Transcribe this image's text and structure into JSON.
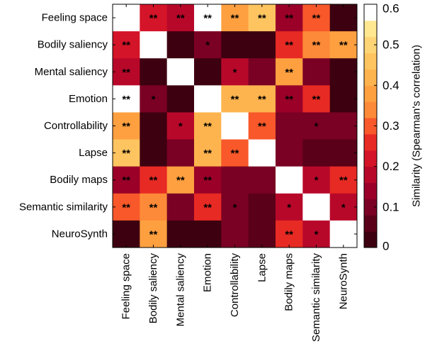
{
  "chart_data": {
    "type": "heatmap",
    "title": "",
    "row_labels": [
      "Feeling space",
      "Bodily saliency",
      "Mental saliency",
      "Emotion",
      "Controllability",
      "Lapse",
      "Bodily maps",
      "Semantic similarity",
      "NeuroSynth"
    ],
    "col_labels": [
      "Feeling space",
      "Bodily saliency",
      "Mental saliency",
      "Emotion",
      "Controllability",
      "Lapse",
      "Bodily maps",
      "Semantic similarity",
      "NeuroSynth"
    ],
    "values": [
      [
        null,
        0.22,
        0.18,
        0.6,
        0.38,
        0.45,
        0.14,
        0.3,
        0.02
      ],
      [
        0.22,
        null,
        0.02,
        0.1,
        0.02,
        0.02,
        0.26,
        0.34,
        0.36
      ],
      [
        0.18,
        0.02,
        null,
        0.02,
        0.16,
        0.1,
        0.38,
        0.1,
        0.02
      ],
      [
        0.6,
        0.1,
        0.02,
        null,
        0.42,
        0.42,
        0.14,
        0.26,
        0.02
      ],
      [
        0.38,
        0.02,
        0.16,
        0.42,
        null,
        0.3,
        0.1,
        0.1,
        0.1
      ],
      [
        0.45,
        0.02,
        0.1,
        0.42,
        0.3,
        null,
        0.1,
        0.04,
        0.04
      ],
      [
        0.14,
        0.26,
        0.38,
        0.14,
        0.1,
        0.1,
        null,
        0.16,
        0.26
      ],
      [
        0.3,
        0.34,
        0.1,
        0.26,
        0.1,
        0.04,
        0.16,
        null,
        0.16
      ],
      [
        0.02,
        0.36,
        0.02,
        0.02,
        0.1,
        0.04,
        0.26,
        0.16,
        null
      ]
    ],
    "significance": [
      [
        "",
        "**",
        "**",
        "**",
        "**",
        "**",
        "**",
        "**",
        ""
      ],
      [
        "**",
        "",
        "",
        "*",
        "",
        "",
        "**",
        "**",
        "**"
      ],
      [
        "**",
        "",
        "",
        "",
        "*",
        "",
        "**",
        "",
        ""
      ],
      [
        "**",
        "*",
        "",
        "",
        "**",
        "**",
        "**",
        "**",
        ""
      ],
      [
        "**",
        "",
        "*",
        "**",
        "",
        "**",
        "",
        "*",
        ""
      ],
      [
        "**",
        "",
        "",
        "**",
        "**",
        "",
        "",
        "",
        ""
      ],
      [
        "**",
        "**",
        "**",
        "**",
        "",
        "",
        "",
        "*",
        "**"
      ],
      [
        "**",
        "**",
        "",
        "**",
        "*",
        "",
        "*",
        "",
        "*"
      ],
      [
        "",
        "**",
        "",
        "",
        "",
        "",
        "**",
        "*",
        ""
      ]
    ],
    "diagonal": "white",
    "colorbar": {
      "label": "Similarity (Spearman's correlation)",
      "range": [
        0,
        0.6
      ],
      "ticks": [
        0,
        0.1,
        0.2,
        0.3,
        0.4,
        0.5,
        0.6
      ],
      "tick_labels": [
        "0",
        "0.1",
        "0.2",
        "0.3",
        "0.4",
        "0.5",
        "0.6"
      ],
      "bins": 15,
      "colormap": "hot (discrete)",
      "colors": [
        "#3d0010",
        "#5a0018",
        "#7a0024",
        "#9a0028",
        "#b8082a",
        "#d41428",
        "#e82a24",
        "#f8582a",
        "#fd8a38",
        "#fea040",
        "#feb44e",
        "#fec460",
        "#fed576",
        "#ffe890",
        "#fff8b8"
      ],
      "placement": "right"
    },
    "xlabel": "",
    "ylabel": "",
    "grid": false
  }
}
